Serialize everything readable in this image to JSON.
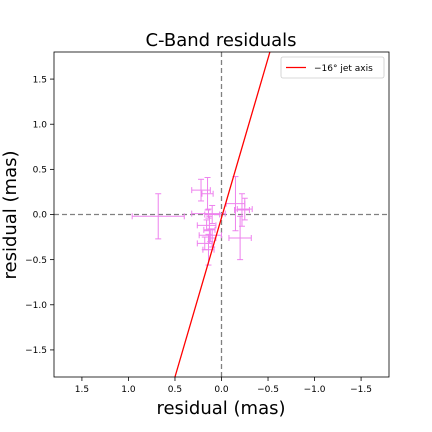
{
  "chart_data": {
    "type": "scatter",
    "title": "C-Band residuals",
    "xlabel": "residual (mas)",
    "ylabel": "residual (mas)",
    "xlim": [
      1.8,
      -1.8
    ],
    "ylim": [
      -1.8,
      1.8
    ],
    "x_inverted": true,
    "xticks": [
      1.5,
      1.0,
      0.5,
      0.0,
      -0.5,
      -1.0,
      -1.5
    ],
    "xtick_labels": [
      "1.5",
      "1.0",
      "0.5",
      "0.0",
      "−0.5",
      "−1.0",
      "−1.5"
    ],
    "yticks": [
      1.5,
      1.0,
      0.5,
      0.0,
      -0.5,
      -1.0,
      -1.5
    ],
    "ytick_labels": [
      "1.5",
      "1.0",
      "0.5",
      "0.0",
      "−0.5",
      "−1.0",
      "−1.5"
    ],
    "grid": false,
    "reference_lines": {
      "x": 0,
      "y": 0,
      "style": "dashed",
      "color": "#808080"
    },
    "jet_axis": {
      "name": "−16° jet axis",
      "color": "#ff0000",
      "points": [
        [
          0.5,
          -1.8
        ],
        [
          -0.52,
          1.8
        ]
      ]
    },
    "legend": {
      "location": "upper right",
      "entries": [
        "−16° jet axis"
      ]
    },
    "series": [
      {
        "color": "#ee82ee",
        "marker": "none",
        "points": [
          {
            "x": 0.68,
            "y": -0.02,
            "xerr": 0.28,
            "yerr": 0.25
          },
          {
            "x": 0.22,
            "y": 0.27,
            "xerr": 0.1,
            "yerr": 0.12
          },
          {
            "x": 0.15,
            "y": 0.23,
            "xerr": 0.06,
            "yerr": 0.18
          },
          {
            "x": 0.14,
            "y": 0.01,
            "xerr": 0.18,
            "yerr": 0.05
          },
          {
            "x": 0.1,
            "y": 0.0,
            "xerr": 0.08,
            "yerr": 0.1
          },
          {
            "x": 0.16,
            "y": -0.12,
            "xerr": 0.1,
            "yerr": 0.06
          },
          {
            "x": 0.13,
            "y": -0.17,
            "xerr": 0.06,
            "yerr": 0.15
          },
          {
            "x": 0.12,
            "y": -0.23,
            "xerr": 0.12,
            "yerr": 0.07
          },
          {
            "x": 0.1,
            "y": -0.26,
            "xerr": 0.04,
            "yerr": 0.1
          },
          {
            "x": 0.18,
            "y": -0.32,
            "xerr": 0.08,
            "yerr": 0.07
          },
          {
            "x": 0.14,
            "y": -0.39,
            "xerr": 0.06,
            "yerr": 0.17
          },
          {
            "x": -0.15,
            "y": 0.12,
            "xerr": 0.1,
            "yerr": 0.3
          },
          {
            "x": -0.22,
            "y": 0.05,
            "xerr": 0.08,
            "yerr": 0.18
          },
          {
            "x": -0.25,
            "y": 0.06,
            "xerr": 0.08,
            "yerr": 0.12
          },
          {
            "x": -0.2,
            "y": -0.26,
            "xerr": 0.12,
            "yerr": 0.24
          }
        ]
      }
    ]
  }
}
